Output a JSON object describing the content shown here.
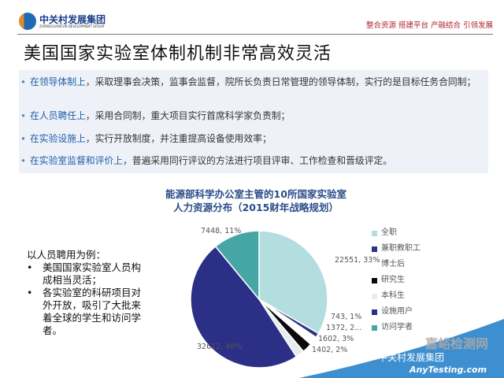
{
  "header": {
    "logo_cn": "中关村发展集团",
    "logo_en": "ZHONGGUANCUN DEVELOPMENT GROUP",
    "slogan": "整合资源 搭建平台 产融结合 引领发展"
  },
  "slide": {
    "title": "美国国家实验室体制机制非常高效灵活",
    "bullets": [
      {
        "highlight": "在领导体制上",
        "text": "，采取理事会决策，监事会监督，院所长负责日常管理的领导体制，实行的是目标任务合同制；"
      },
      {
        "highlight": "在人员聘任上",
        "text": "，采用合同制，重大项目实行首席科学家负责制；"
      },
      {
        "highlight": "在实验设施上",
        "text": "，实行开放制度，并注重提高设备使用效率；"
      },
      {
        "highlight": "在实验室监督和评价上",
        "text": "，普遍采用同行评议的方法进行项目评审、工作检查和晋级评定。"
      }
    ],
    "side_intro": "以人员聘用为例：",
    "side_bullets": [
      "美国国家实验室人员构成相当灵活；",
      "各实验室的科研项目对外开放，吸引了大批来着全球的学生和访问学者。"
    ]
  },
  "chart_data": {
    "type": "pie",
    "title": "能源部科学办公室主管的10所国家实验室\n人力资源分布（2015财年战略规划）",
    "title_lines": [
      "能源部科学办公室主管的10所国家实验室",
      "人力资源分布（2015财年战略规划）"
    ],
    "legend_position": "right",
    "slices": [
      {
        "name": "全职",
        "value": 22551,
        "label": "22551, 33%",
        "color": "#b4dde0"
      },
      {
        "name": "兼职教职工",
        "value": 743,
        "label": "743, 1%",
        "color": "#2e3680"
      },
      {
        "name": "博士后",
        "value": 1372,
        "label": "1372, 2...",
        "color": "#ffffff"
      },
      {
        "name": "研究生",
        "value": 1602,
        "label": "1602, 3%",
        "color": "#0a0a0a"
      },
      {
        "name": "本科生",
        "value": 1402,
        "label": "1402, 2%",
        "color": "#e6ecef"
      },
      {
        "name": "设施用户",
        "value": 32612,
        "label": "32612, 48%",
        "color": "#2b2f85"
      },
      {
        "name": "访问学者",
        "value": 7448,
        "label": "7448, 11%",
        "color": "#46a6a6"
      }
    ]
  },
  "watermark": {
    "site_cn": "嘉峪检测网",
    "site_en": "AnyTesting.com",
    "group": "中关村发展集团"
  }
}
